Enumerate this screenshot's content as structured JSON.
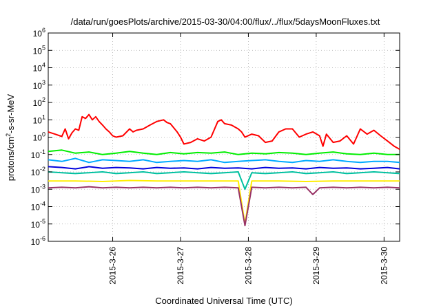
{
  "chart_data": {
    "type": "line",
    "title": "/data/run/goesPlots/archive/2015-03-30/04:00/flux/../flux/5daysMoonFluxes.txt",
    "xlabel": "Coordinated Universal Time (UTC)",
    "ylabel_parts": {
      "pre": "protons/cm",
      "sup": "2",
      "post": "-s-sr-MeV"
    },
    "xlim": [
      0,
      5.18
    ],
    "ylim": [
      1e-06,
      1000000.0
    ],
    "yscale": "log",
    "grid": true,
    "x_ticks": [
      {
        "x": 0.95,
        "label": "2015-3-26"
      },
      {
        "x": 1.95,
        "label": "2015-3-27"
      },
      {
        "x": 2.95,
        "label": "2015-3-28"
      },
      {
        "x": 3.95,
        "label": "2015-3-29"
      },
      {
        "x": 4.95,
        "label": "2015-3-30"
      }
    ],
    "y_ticks": [
      {
        "exp": 6,
        "label": "10",
        "sup": "6"
      },
      {
        "exp": 5,
        "label": "10",
        "sup": "5"
      },
      {
        "exp": 4,
        "label": "10",
        "sup": "4"
      },
      {
        "exp": 3,
        "label": "10",
        "sup": "3"
      },
      {
        "exp": 2,
        "label": "10",
        "sup": "2"
      },
      {
        "exp": 1,
        "label": "10",
        "sup": "1"
      },
      {
        "exp": 0,
        "label": "10",
        "sup": "0"
      },
      {
        "exp": -1,
        "label": "10",
        "sup": "-1"
      },
      {
        "exp": -2,
        "label": "10",
        "sup": "-2"
      },
      {
        "exp": -3,
        "label": "10",
        "sup": "-3"
      },
      {
        "exp": -4,
        "label": "10",
        "sup": "-4"
      },
      {
        "exp": -5,
        "label": "10",
        "sup": "-5"
      },
      {
        "exp": -6,
        "label": "10",
        "sup": "-6"
      }
    ],
    "series": [
      {
        "color": "#ff0000",
        "x": [
          0,
          0.1,
          0.2,
          0.25,
          0.3,
          0.35,
          0.4,
          0.45,
          0.5,
          0.55,
          0.6,
          0.65,
          0.7,
          0.75,
          0.8,
          0.85,
          0.9,
          0.95,
          1.0,
          1.1,
          1.2,
          1.25,
          1.3,
          1.4,
          1.5,
          1.6,
          1.7,
          1.75,
          1.8,
          1.9,
          1.95,
          2.0,
          2.1,
          2.2,
          2.3,
          2.4,
          2.5,
          2.55,
          2.6,
          2.7,
          2.8,
          2.85,
          2.9,
          3.0,
          3.1,
          3.2,
          3.3,
          3.4,
          3.5,
          3.6,
          3.7,
          3.8,
          3.9,
          4.0,
          4.05,
          4.1,
          4.2,
          4.3,
          4.4,
          4.5,
          4.6,
          4.7,
          4.8,
          4.9,
          5.0,
          5.1,
          5.18
        ],
        "values": [
          2,
          1.5,
          1.1,
          3,
          0.8,
          1.8,
          3,
          2.5,
          15,
          12,
          20,
          10,
          15,
          8,
          5,
          3,
          2,
          1.2,
          1,
          1.2,
          3,
          2,
          2.5,
          3,
          5,
          8,
          10,
          7,
          6,
          2,
          1,
          0.4,
          0.5,
          0.8,
          0.6,
          1,
          8,
          10,
          6,
          5,
          3,
          2,
          1,
          1.5,
          1.2,
          0.5,
          0.6,
          2,
          3,
          3,
          1,
          1.5,
          2,
          1.2,
          0.3,
          1.5,
          0.5,
          0.6,
          1.2,
          0.4,
          3,
          1.5,
          2.5,
          1.2,
          0.6,
          0.3,
          0.2
        ]
      },
      {
        "color": "#00ee00",
        "x": [
          0,
          0.2,
          0.4,
          0.6,
          0.8,
          1.0,
          1.2,
          1.4,
          1.6,
          1.8,
          2.0,
          2.2,
          2.4,
          2.6,
          2.8,
          3.0,
          3.2,
          3.4,
          3.6,
          3.8,
          4.0,
          4.2,
          4.4,
          4.6,
          4.8,
          5.0,
          5.18
        ],
        "values": [
          0.15,
          0.18,
          0.12,
          0.14,
          0.1,
          0.12,
          0.15,
          0.12,
          0.1,
          0.13,
          0.11,
          0.13,
          0.12,
          0.14,
          0.1,
          0.12,
          0.11,
          0.13,
          0.12,
          0.1,
          0.12,
          0.14,
          0.11,
          0.1,
          0.12,
          0.1,
          0.1
        ]
      },
      {
        "color": "#00aaff",
        "x": [
          0,
          0.2,
          0.4,
          0.6,
          0.8,
          1.0,
          1.2,
          1.4,
          1.6,
          1.8,
          2.0,
          2.2,
          2.4,
          2.6,
          2.8,
          3.0,
          3.2,
          3.4,
          3.6,
          3.8,
          4.0,
          4.2,
          4.4,
          4.6,
          4.8,
          5.0,
          5.18
        ],
        "values": [
          0.05,
          0.04,
          0.06,
          0.035,
          0.05,
          0.045,
          0.04,
          0.05,
          0.035,
          0.04,
          0.045,
          0.04,
          0.05,
          0.035,
          0.04,
          0.045,
          0.05,
          0.04,
          0.035,
          0.045,
          0.04,
          0.05,
          0.04,
          0.035,
          0.04,
          0.04,
          0.035
        ]
      },
      {
        "color": "#0000dd",
        "x": [
          0,
          0.2,
          0.4,
          0.6,
          0.8,
          1.0,
          1.2,
          1.4,
          1.6,
          1.8,
          2.0,
          2.2,
          2.4,
          2.6,
          2.8,
          3.0,
          3.2,
          3.4,
          3.6,
          3.8,
          4.0,
          4.2,
          4.4,
          4.6,
          4.8,
          5.0,
          5.18
        ],
        "values": [
          0.02,
          0.018,
          0.015,
          0.02,
          0.016,
          0.018,
          0.017,
          0.015,
          0.018,
          0.016,
          0.017,
          0.015,
          0.018,
          0.016,
          0.017,
          0.015,
          0.018,
          0.016,
          0.017,
          0.015,
          0.018,
          0.016,
          0.017,
          0.015,
          0.016,
          0.018,
          0.015
        ]
      },
      {
        "color": "#00c0a0",
        "x": [
          0,
          0.2,
          0.4,
          0.6,
          0.8,
          1.0,
          1.2,
          1.4,
          1.6,
          1.8,
          2.0,
          2.2,
          2.4,
          2.6,
          2.8,
          2.9,
          3.0,
          3.2,
          3.4,
          3.6,
          3.8,
          4.0,
          4.2,
          4.4,
          4.6,
          4.8,
          5.0,
          5.18
        ],
        "values": [
          0.01,
          0.009,
          0.008,
          0.009,
          0.01,
          0.008,
          0.009,
          0.01,
          0.008,
          0.009,
          0.01,
          0.009,
          0.008,
          0.009,
          0.01,
          0.001,
          0.009,
          0.008,
          0.009,
          0.01,
          0.008,
          0.009,
          0.01,
          0.008,
          0.009,
          0.01,
          0.009,
          0.008
        ]
      },
      {
        "color": "#ffee00",
        "x": [
          0,
          0.4,
          0.8,
          1.2,
          1.6,
          2.0,
          2.4,
          2.8,
          2.9,
          3.0,
          3.4,
          3.8,
          4.2,
          4.6,
          5.0,
          5.18
        ],
        "values": [
          0.003,
          0.003,
          0.0028,
          0.0032,
          0.003,
          0.003,
          0.003,
          0.003,
          1e-05,
          0.003,
          0.003,
          0.0028,
          0.003,
          0.003,
          0.003,
          0.003
        ]
      },
      {
        "color": "#993366",
        "x": [
          0,
          0.2,
          0.4,
          0.6,
          0.8,
          1.0,
          1.2,
          1.4,
          1.6,
          1.8,
          2.0,
          2.2,
          2.4,
          2.6,
          2.8,
          2.9,
          3.0,
          3.2,
          3.4,
          3.6,
          3.8,
          3.9,
          4.0,
          4.2,
          4.4,
          4.6,
          4.8,
          5.0,
          5.18
        ],
        "values": [
          0.0012,
          0.0013,
          0.0012,
          0.0014,
          0.0012,
          0.0013,
          0.0012,
          0.0013,
          0.0012,
          0.0013,
          0.0012,
          0.0013,
          0.0012,
          0.0013,
          0.0012,
          8e-06,
          0.0013,
          0.0012,
          0.0013,
          0.0012,
          0.0013,
          0.0005,
          0.0012,
          0.0013,
          0.0012,
          0.0013,
          0.0012,
          0.0013,
          0.0012
        ]
      }
    ]
  }
}
